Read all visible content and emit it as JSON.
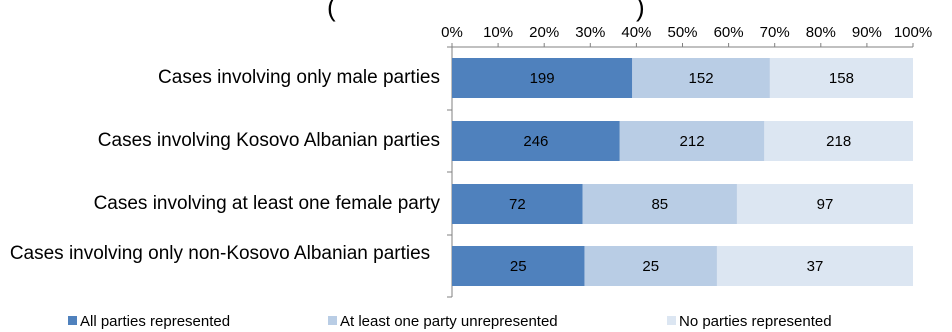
{
  "chart_data": {
    "type": "bar",
    "orientation": "horizontal",
    "stacked": "percent",
    "title": "",
    "categories": [
      "Cases involving only male parties",
      "Cases involving Kosovo Albanian parties",
      "Cases involving at least one female party",
      "Cases involving only non-Kosovo Albanian parties"
    ],
    "series": [
      {
        "name": "All parties represented",
        "values": [
          199,
          246,
          72,
          25
        ],
        "color": "#4f81bd"
      },
      {
        "name": "At least one party unrepresented",
        "values": [
          152,
          212,
          85,
          25
        ],
        "color": "#b9cde5"
      },
      {
        "name": "No parties represented",
        "values": [
          158,
          218,
          97,
          37
        ],
        "color": "#dce6f2"
      }
    ],
    "xaxis": {
      "ticks": [
        "0%",
        "10%",
        "20%",
        "30%",
        "40%",
        "50%",
        "60%",
        "70%",
        "80%",
        "90%",
        "100%"
      ],
      "range": [
        0,
        100
      ],
      "position": "top"
    },
    "grid": false,
    "legend": {
      "position": "bottom"
    }
  },
  "title_fragment": "(",
  "title_fragment_2": ")"
}
